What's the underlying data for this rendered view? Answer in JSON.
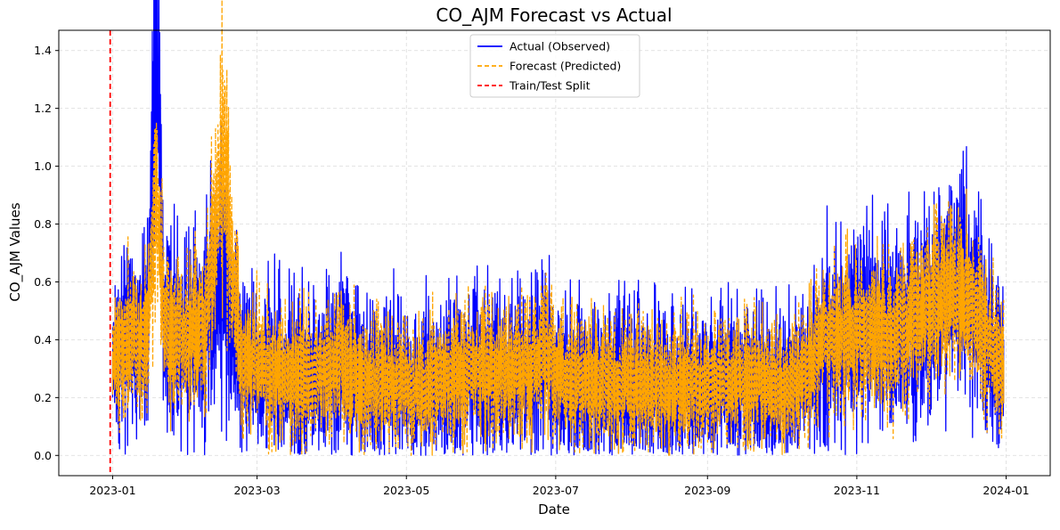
{
  "chart_data": {
    "type": "line",
    "title": "CO_AJM Forecast vs Actual",
    "xlabel": "Date",
    "ylabel": "CO_AJM Values",
    "x_range": [
      "2022-12-10",
      "2024-01-19"
    ],
    "ylim": [
      -0.07,
      1.47
    ],
    "x_ticks": [
      "2023-01",
      "2023-03",
      "2023-05",
      "2023-07",
      "2023-09",
      "2023-11",
      "2024-01"
    ],
    "y_ticks": [
      "0.0",
      "0.2",
      "0.4",
      "0.6",
      "0.8",
      "1.0",
      "1.2",
      "1.4"
    ],
    "grid": true,
    "legend_position": "upper center",
    "split_date": "2022-12-31",
    "series": [
      {
        "name": "Actual (Observed)",
        "style": "solid",
        "color": "#0000ff",
        "x": [
          "2023-01-01",
          "2023-01-08",
          "2023-01-15",
          "2023-01-19",
          "2023-01-22",
          "2023-02-01",
          "2023-02-08",
          "2023-02-15",
          "2023-02-22",
          "2023-03-01",
          "2023-03-08",
          "2023-03-15",
          "2023-03-22",
          "2023-03-29",
          "2023-04-05",
          "2023-04-12",
          "2023-04-19",
          "2023-04-26",
          "2023-05-03",
          "2023-05-10",
          "2023-05-17",
          "2023-05-24",
          "2023-05-31",
          "2023-06-07",
          "2023-06-14",
          "2023-06-21",
          "2023-06-28",
          "2023-07-05",
          "2023-07-12",
          "2023-07-19",
          "2023-07-26",
          "2023-08-02",
          "2023-08-09",
          "2023-08-16",
          "2023-08-23",
          "2023-08-30",
          "2023-09-06",
          "2023-09-13",
          "2023-09-20",
          "2023-09-27",
          "2023-10-04",
          "2023-10-11",
          "2023-10-18",
          "2023-10-25",
          "2023-11-01",
          "2023-11-08",
          "2023-11-15",
          "2023-11-22",
          "2023-11-29",
          "2023-12-06",
          "2023-12-13",
          "2023-12-20",
          "2023-12-27",
          "2023-12-31"
        ],
        "values": [
          0.35,
          0.42,
          0.38,
          1.4,
          0.45,
          0.4,
          0.45,
          0.62,
          0.36,
          0.3,
          0.28,
          0.27,
          0.26,
          0.3,
          0.34,
          0.26,
          0.24,
          0.25,
          0.22,
          0.24,
          0.27,
          0.3,
          0.28,
          0.27,
          0.29,
          0.3,
          0.34,
          0.24,
          0.26,
          0.23,
          0.25,
          0.24,
          0.24,
          0.22,
          0.25,
          0.24,
          0.25,
          0.25,
          0.26,
          0.24,
          0.22,
          0.28,
          0.4,
          0.42,
          0.45,
          0.42,
          0.44,
          0.48,
          0.5,
          0.55,
          0.6,
          0.52,
          0.35,
          0.33
        ]
      },
      {
        "name": "Forecast (Predicted)",
        "style": "dashed",
        "color": "#ffa500",
        "x": [
          "2023-01-01",
          "2023-01-08",
          "2023-01-15",
          "2023-01-19",
          "2023-01-22",
          "2023-02-01",
          "2023-02-08",
          "2023-02-15",
          "2023-02-22",
          "2023-03-01",
          "2023-03-08",
          "2023-03-15",
          "2023-03-22",
          "2023-03-29",
          "2023-04-05",
          "2023-04-12",
          "2023-04-19",
          "2023-04-26",
          "2023-05-03",
          "2023-05-10",
          "2023-05-17",
          "2023-05-24",
          "2023-05-31",
          "2023-06-07",
          "2023-06-14",
          "2023-06-21",
          "2023-06-28",
          "2023-07-05",
          "2023-07-12",
          "2023-07-19",
          "2023-07-26",
          "2023-08-02",
          "2023-08-09",
          "2023-08-16",
          "2023-08-23",
          "2023-08-30",
          "2023-09-06",
          "2023-09-13",
          "2023-09-20",
          "2023-09-27",
          "2023-10-04",
          "2023-10-11",
          "2023-10-18",
          "2023-10-25",
          "2023-11-01",
          "2023-11-08",
          "2023-11-15",
          "2023-11-22",
          "2023-11-29",
          "2023-12-06",
          "2023-12-13",
          "2023-12-20",
          "2023-12-27",
          "2023-12-31"
        ],
        "values": [
          0.36,
          0.41,
          0.39,
          0.97,
          0.44,
          0.4,
          0.44,
          1.04,
          0.37,
          0.31,
          0.29,
          0.28,
          0.27,
          0.3,
          0.33,
          0.27,
          0.25,
          0.26,
          0.23,
          0.25,
          0.28,
          0.3,
          0.29,
          0.27,
          0.29,
          0.3,
          0.34,
          0.25,
          0.27,
          0.24,
          0.26,
          0.25,
          0.25,
          0.23,
          0.26,
          0.25,
          0.26,
          0.26,
          0.27,
          0.25,
          0.23,
          0.29,
          0.4,
          0.42,
          0.44,
          0.42,
          0.43,
          0.47,
          0.49,
          0.54,
          0.58,
          0.51,
          0.36,
          0.33
        ]
      }
    ],
    "legend_entries": [
      {
        "label": "Actual (Observed)",
        "color": "#0000ff",
        "style": "solid"
      },
      {
        "label": "Forecast (Predicted)",
        "color": "#ffa500",
        "style": "dashed"
      },
      {
        "label": "Train/Test Split",
        "color": "#ff0000",
        "style": "dashed"
      }
    ]
  }
}
